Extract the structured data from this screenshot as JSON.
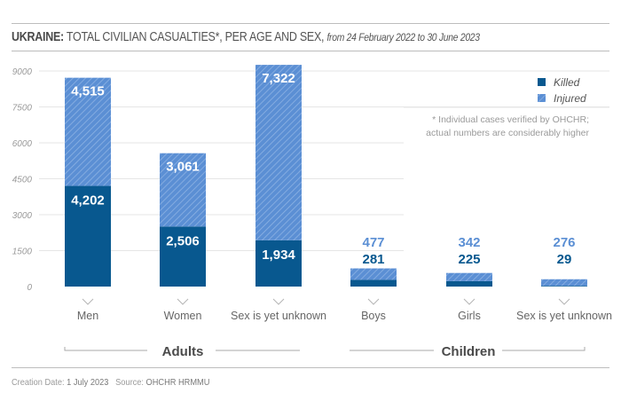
{
  "title": {
    "country": "UKRAINE:",
    "main": "TOTAL CIVILIAN CASUALTIES*, PER AGE AND SEX,",
    "period": "from 24 February 2022 to 30 June 2023"
  },
  "footnote": {
    "line1": "* Individual cases verified by OHCHR;",
    "line2": "actual numbers are considerably higher"
  },
  "footer": {
    "creation_label": "Creation Date:",
    "creation_value": "1 July 2023",
    "source_label": "Source:",
    "source_value": "OHCHR HRMMU"
  },
  "groups": [
    {
      "label": "Adults"
    },
    {
      "label": "Children"
    }
  ],
  "colors": {
    "killed": "#08588f",
    "injured": "#5b8fd4",
    "injured_stripe": "#8eb3e4",
    "grid": "#e6e6e6",
    "axis_text": "#9a9a9a"
  },
  "chart_data": {
    "type": "bar",
    "stacked": true,
    "title": "UKRAINE: TOTAL CIVILIAN CASUALTIES*, PER AGE AND SEX, from 24 February 2022 to 30 June 2023",
    "xlabel": "",
    "ylabel": "",
    "ylim": [
      0,
      9000
    ],
    "yticks": [
      "0",
      "1500",
      "3000",
      "4500",
      "6000",
      "7500",
      "9000"
    ],
    "ytick_values": [
      0,
      1500,
      3000,
      4500,
      6000,
      7500,
      9000
    ],
    "grid": true,
    "legend_position": "top-right",
    "categories": [
      "Men",
      "Women",
      "Sex is yet unknown",
      "Boys",
      "Girls",
      "Sex is yet unknown"
    ],
    "category_groups": [
      "Adults",
      "Adults",
      "Adults",
      "Children",
      "Children",
      "Children"
    ],
    "series": [
      {
        "name": "Killed",
        "values": [
          4202,
          2506,
          1934,
          281,
          225,
          29
        ],
        "labels": [
          "4,202",
          "2,506",
          "1,934",
          "281",
          "225",
          "29"
        ]
      },
      {
        "name": "Injured",
        "values": [
          4515,
          3061,
          7322,
          477,
          342,
          276
        ],
        "labels": [
          "4,515",
          "3,061",
          "7,322",
          "477",
          "342",
          "276"
        ]
      }
    ]
  }
}
